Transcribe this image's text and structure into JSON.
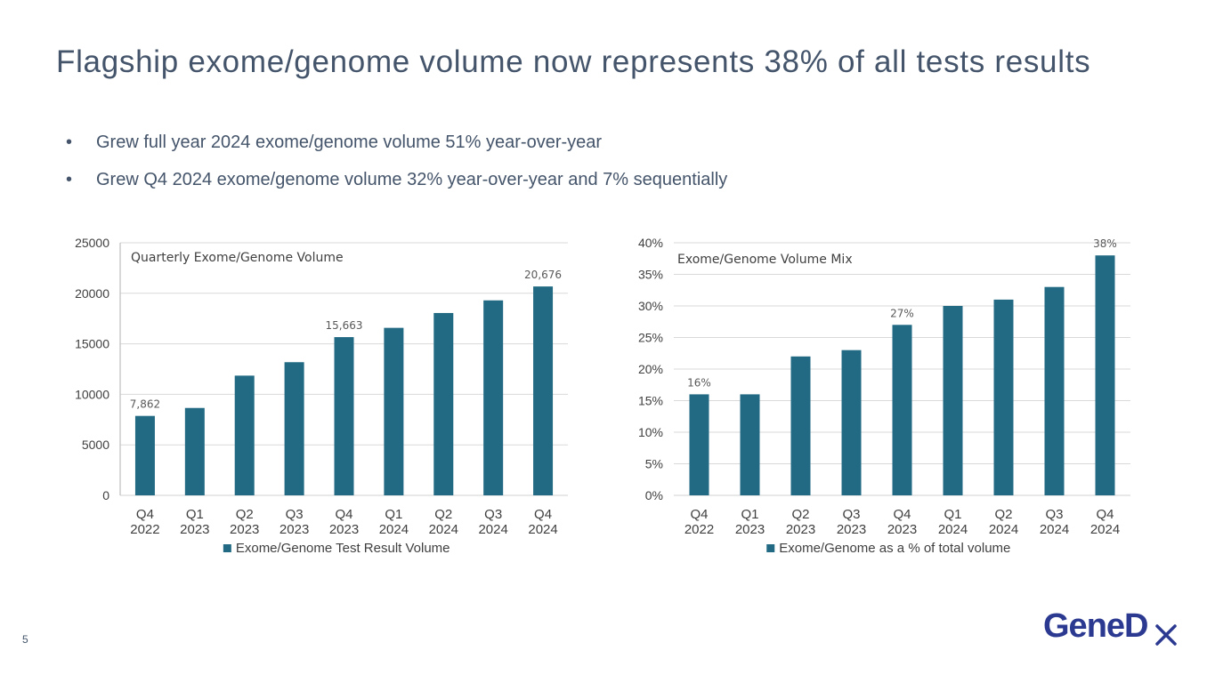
{
  "slide": {
    "title": "Flagship exome/genome volume now represents 38% of all tests results",
    "bullets": [
      "Grew full year 2024 exome/genome volume 51% year-over-year",
      "Grew Q4 2024 exome/genome volume 32% year-over-year and 7% sequentially"
    ],
    "bullet_symbol": "•",
    "page_number": "5",
    "logo_text": "GeneDx"
  },
  "colors": {
    "bar": "#226a84",
    "text": "#44546a",
    "axis": "#404040",
    "grid": "#d9d9d9"
  },
  "chart_data": [
    {
      "type": "bar",
      "title": "Quarterly Exome/Genome Volume",
      "categories": [
        "Q4\n2022",
        "Q1\n2023",
        "Q2\n2023",
        "Q3\n2023",
        "Q4\n2023",
        "Q1\n2024",
        "Q2\n2024",
        "Q3\n2024",
        "Q4\n2024"
      ],
      "series": [
        {
          "name": "Exome/Genome Test Result Volume",
          "values": [
            7862,
            8650,
            11850,
            13180,
            15663,
            16580,
            18050,
            19300,
            20676
          ]
        }
      ],
      "data_labels": {
        "0": "7,862",
        "4": "15,663",
        "8": "20,676"
      },
      "ylim": [
        0,
        25000
      ],
      "yticks": [
        0,
        5000,
        10000,
        15000,
        20000,
        25000
      ],
      "ytick_labels": [
        "0",
        "5000",
        "10000",
        "15000",
        "20000",
        "25000"
      ],
      "legend": "bottom",
      "xlabel": "",
      "ylabel": ""
    },
    {
      "type": "bar",
      "title": "Exome/Genome Volume Mix",
      "categories": [
        "Q4\n2022",
        "Q1\n2023",
        "Q2\n2023",
        "Q3\n2023",
        "Q4\n2023",
        "Q1\n2024",
        "Q2\n2024",
        "Q3\n2024",
        "Q4\n2024"
      ],
      "series": [
        {
          "name": "Exome/Genome as a % of total volume",
          "values": [
            16,
            16,
            22,
            23,
            27,
            30,
            31,
            33,
            38
          ]
        }
      ],
      "data_labels": {
        "0": "16%",
        "4": "27%",
        "8": "38%"
      },
      "ylim": [
        0,
        40
      ],
      "yticks": [
        0,
        5,
        10,
        15,
        20,
        25,
        30,
        35,
        40
      ],
      "ytick_labels": [
        "0%",
        "5%",
        "10%",
        "15%",
        "20%",
        "25%",
        "30%",
        "35%",
        "40%"
      ],
      "legend": "bottom",
      "xlabel": "",
      "ylabel": ""
    }
  ]
}
